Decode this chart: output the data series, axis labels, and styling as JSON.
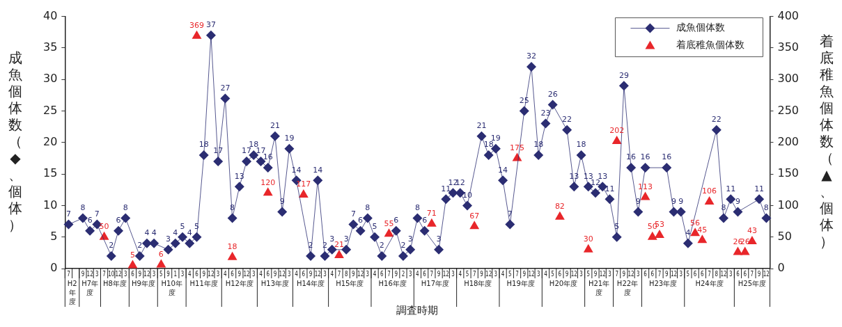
{
  "chart_data": {
    "type": "line",
    "xlabel": "調査時期",
    "ylabel": "成魚個体数（◆、個体）",
    "y2label": "着底稚魚個体数（▲、個体）",
    "categories": [
      "7",
      null,
      "9",
      "12",
      "3",
      "7",
      "10",
      "12",
      "3",
      "6",
      "9",
      "12",
      "3",
      "5",
      "9",
      "1",
      "3",
      "4",
      "6",
      "9",
      "12",
      "3",
      "4",
      "6",
      "9",
      "12",
      "3",
      "4",
      "6",
      "9",
      "12",
      "3",
      "4",
      "6",
      "9",
      "12",
      "3",
      "4",
      "7",
      "8",
      "9",
      "12",
      "3",
      "4",
      "6",
      "7",
      "9",
      "2",
      "3",
      "4",
      "6",
      "7",
      "9",
      "12",
      "3",
      "4",
      "5",
      "7",
      "9",
      "12",
      "3",
      "4",
      "5",
      "7",
      "9",
      "12",
      "3",
      "4",
      "5",
      "6",
      "9",
      "12",
      "3",
      "5",
      "9",
      "12",
      "3",
      "7",
      "9",
      "12",
      "3",
      "6",
      "6",
      "7",
      "9",
      "12",
      "3",
      "5",
      "6",
      "6",
      "7",
      "8",
      "12",
      "3",
      "6",
      "6",
      "7",
      "9",
      "12"
    ],
    "series": [
      {
        "name": "成魚個体数",
        "type": "line",
        "marker": "diamond",
        "color": "#2b2d72",
        "values": [
          7,
          null,
          8,
          6,
          7,
          null,
          2,
          6,
          8,
          null,
          2,
          4,
          4,
          null,
          3,
          4,
          5,
          4,
          5,
          18,
          37,
          17,
          27,
          8,
          13,
          17,
          18,
          17,
          16,
          21,
          9,
          19,
          14,
          null,
          2,
          14,
          2,
          3,
          null,
          3,
          7,
          6,
          8,
          5,
          2,
          null,
          6,
          2,
          3,
          8,
          6,
          null,
          3,
          11,
          12,
          12,
          10,
          null,
          21,
          18,
          19,
          14,
          7,
          null,
          25,
          32,
          18,
          23,
          26,
          null,
          22,
          13,
          18,
          13,
          12,
          13,
          11,
          5,
          29,
          16,
          9,
          16,
          null,
          null,
          16,
          9,
          9,
          4,
          null,
          null,
          null,
          22,
          8,
          11,
          9,
          null,
          null,
          11,
          8
        ]
      },
      {
        "name": "着底稚魚個体数",
        "type": "scatter",
        "marker": "triangle",
        "axis": "y2",
        "color": "#e8262a",
        "values": [
          null,
          null,
          null,
          null,
          null,
          50,
          null,
          null,
          null,
          5,
          null,
          null,
          null,
          6,
          null,
          null,
          null,
          null,
          369,
          null,
          null,
          null,
          null,
          18,
          null,
          null,
          null,
          null,
          120,
          null,
          null,
          null,
          null,
          117,
          null,
          null,
          null,
          null,
          21,
          null,
          null,
          null,
          null,
          null,
          null,
          55,
          null,
          null,
          null,
          null,
          null,
          71,
          null,
          null,
          null,
          null,
          null,
          67,
          null,
          null,
          null,
          null,
          null,
          175,
          null,
          null,
          null,
          null,
          null,
          82,
          null,
          null,
          null,
          30,
          null,
          null,
          null,
          202,
          null,
          null,
          null,
          113,
          50,
          53,
          null,
          null,
          null,
          null,
          56,
          45,
          106,
          null,
          null,
          null,
          26,
          26,
          43,
          null,
          null
        ]
      }
    ],
    "ylim": [
      0,
      40
    ],
    "yticks": [
      0,
      5,
      10,
      15,
      20,
      25,
      30,
      35,
      40
    ],
    "y2lim": [
      0,
      400
    ],
    "y2ticks": [
      0,
      50,
      100,
      150,
      200,
      250,
      300,
      350,
      400
    ],
    "data_labels": true,
    "grid": false,
    "legend": "top right",
    "annotations": [
      "H2年度",
      "H7年度",
      "H8年度",
      "H9年度",
      "H10年度",
      "H11年度",
      "H12年度",
      "H13年度",
      "H14年度",
      "H15年度",
      "H16年度",
      "H17年度",
      "H18年度",
      "H19年度",
      "H20年度",
      "H21年度",
      "H22年度",
      "H23年度",
      "H24年度",
      "H25年度"
    ]
  }
}
